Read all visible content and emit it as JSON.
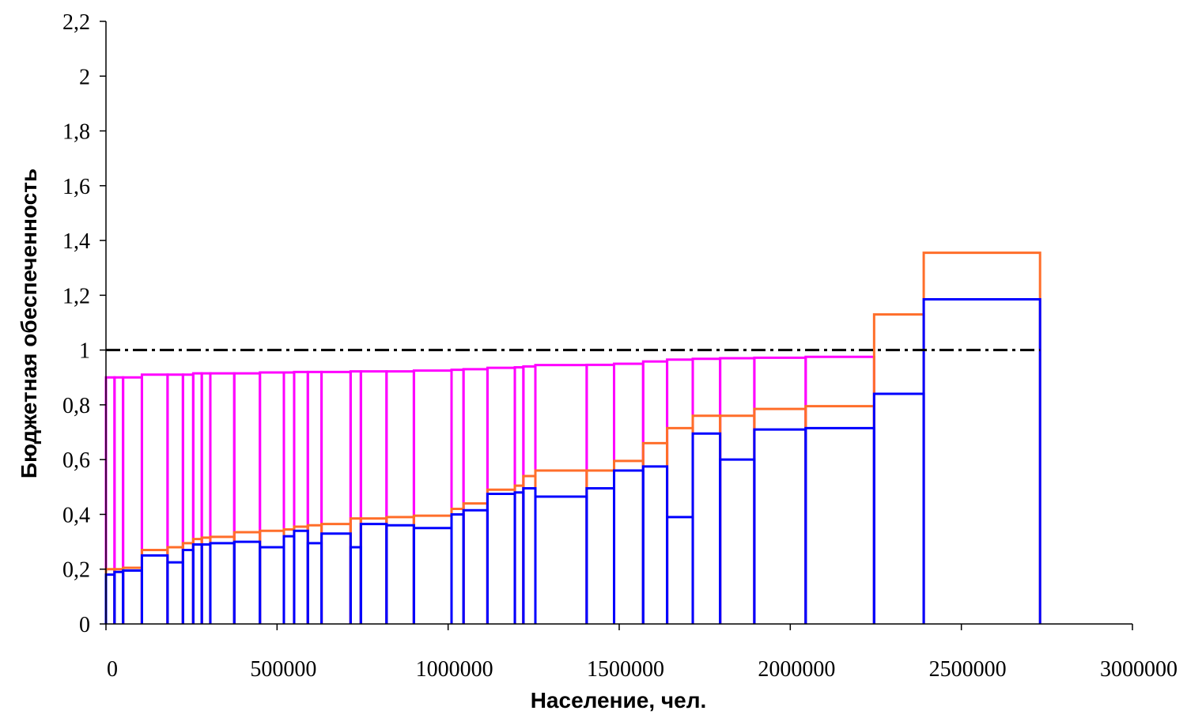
{
  "chart_data": {
    "type": "line",
    "title": "",
    "xlabel": "Население, чел.",
    "ylabel": "Бюджетная обеспеченность",
    "xlim": [
      0,
      3000000
    ],
    "ylim": [
      0,
      2.2
    ],
    "x_ticks": [
      "0",
      "500000",
      "1000000",
      "1500000",
      "2000000",
      "2500000",
      "3000000"
    ],
    "y_ticks": [
      "0",
      "0,2",
      "0,4",
      "0,6",
      "0,8",
      "1",
      "1,2",
      "1,4",
      "1,6",
      "1,8",
      "2",
      "2,2"
    ],
    "grid": false,
    "reference_line": {
      "y": 1,
      "x_range": [
        0,
        2730000
      ],
      "style": "dash-dot",
      "color": "#000000"
    },
    "boundaries": [
      0,
      25000,
      50000,
      105000,
      180000,
      225000,
      255000,
      280000,
      305000,
      375000,
      450000,
      520000,
      550000,
      590000,
      630000,
      715000,
      745000,
      820000,
      900000,
      1010000,
      1045000,
      1115000,
      1195000,
      1220000,
      1255000,
      1405000,
      1485000,
      1570000,
      1640000,
      1715000,
      1795000,
      1895000,
      2045000,
      2245000,
      2390000,
      2730000
    ],
    "series": [
      {
        "color": "#ff00ff",
        "values": [
          0.9,
          0.9,
          0.9,
          0.91,
          0.91,
          0.91,
          0.915,
          0.915,
          0.915,
          0.915,
          0.918,
          0.918,
          0.92,
          0.92,
          0.92,
          0.922,
          0.922,
          0.922,
          0.925,
          0.928,
          0.93,
          0.935,
          0.937,
          0.94,
          0.945,
          0.946,
          0.95,
          0.958,
          0.965,
          0.968,
          0.97,
          0.972,
          0.975,
          null,
          null
        ]
      },
      {
        "color": "#ff6e2a",
        "values": [
          0.2,
          0.2,
          0.205,
          0.27,
          0.28,
          0.295,
          0.31,
          0.315,
          0.318,
          0.335,
          0.34,
          0.345,
          0.355,
          0.36,
          0.365,
          0.385,
          0.385,
          0.39,
          0.395,
          0.42,
          0.44,
          0.49,
          0.505,
          0.54,
          0.56,
          0.56,
          0.595,
          0.66,
          0.715,
          0.76,
          0.76,
          0.785,
          0.795,
          1.13,
          1.355
        ]
      },
      {
        "color": "#0000ff",
        "values": [
          0.18,
          0.19,
          0.195,
          0.25,
          0.225,
          0.27,
          0.29,
          0.29,
          0.295,
          0.3,
          0.28,
          0.32,
          0.34,
          0.295,
          0.33,
          0.28,
          0.365,
          0.36,
          0.35,
          0.4,
          0.415,
          0.475,
          0.48,
          0.495,
          0.465,
          0.495,
          0.56,
          0.575,
          0.39,
          0.695,
          0.6,
          0.71,
          0.715,
          0.84,
          1.185
        ]
      }
    ]
  }
}
